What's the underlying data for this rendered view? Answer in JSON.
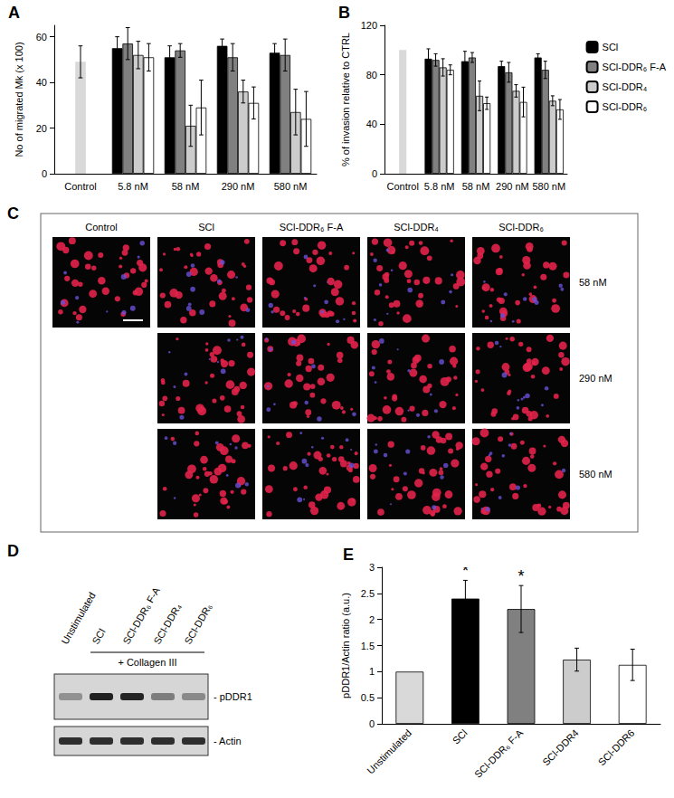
{
  "chart_data": [
    {
      "type": "bar",
      "title": "A",
      "ylabel": "No of migrated Mk (x 100)",
      "categories": [
        "Control",
        "5.8 nM",
        "58 nM",
        "290 nM",
        "580 nM"
      ],
      "ylim": [
        0,
        65
      ],
      "yticks": [
        0,
        20,
        40,
        60
      ],
      "grid": false,
      "legend": "none",
      "control": {
        "category": "Control",
        "value": 49,
        "error": 7,
        "color": "#d9d9d9"
      },
      "series": [
        {
          "name": "SCl",
          "color": "#000000",
          "values": [
            null,
            55,
            51,
            56,
            53
          ],
          "error": [
            null,
            5,
            5,
            3,
            4
          ]
        },
        {
          "name": "SCl-DDR₆ F-A",
          "color": "#808080",
          "values": [
            null,
            57,
            54,
            51,
            52
          ],
          "error": [
            null,
            7,
            3,
            6,
            7
          ]
        },
        {
          "name": "SCl-DDR₄",
          "color": "#cccccc",
          "values": [
            null,
            52,
            21,
            36,
            27
          ],
          "error": [
            null,
            6,
            9,
            5,
            10
          ]
        },
        {
          "name": "SCl-DDR₆",
          "color": "#ffffff",
          "values": [
            null,
            51,
            29,
            31,
            24
          ],
          "error": [
            null,
            6,
            12,
            7,
            12
          ]
        }
      ]
    },
    {
      "type": "bar",
      "title": "B",
      "ylabel": "% of invasion relative to CTRL",
      "categories": [
        "Control",
        "5.8 nM",
        "58 nM",
        "290 nM",
        "580 nM"
      ],
      "ylim": [
        0,
        120
      ],
      "yticks": [
        0,
        40,
        80,
        120
      ],
      "grid": false,
      "legend": "right",
      "control": {
        "category": "Control",
        "value": 100,
        "color": "#d9d9d9"
      },
      "series": [
        {
          "name": "SCl",
          "color": "#000000",
          "values": [
            null,
            93,
            91,
            87,
            94
          ],
          "error": [
            null,
            8,
            8,
            4,
            3
          ]
        },
        {
          "name": "SCl-DDR₆ F-A",
          "color": "#808080",
          "values": [
            null,
            92,
            94,
            82,
            84
          ],
          "error": [
            null,
            5,
            4,
            8,
            7
          ]
        },
        {
          "name": "SCl-DDR₄",
          "color": "#cccccc",
          "values": [
            null,
            86,
            63,
            67,
            59
          ],
          "error": [
            null,
            7,
            12,
            5,
            4
          ]
        },
        {
          "name": "SCl-DDR₆",
          "color": "#ffffff",
          "values": [
            null,
            84,
            57,
            58,
            52
          ],
          "error": [
            null,
            4,
            5,
            12,
            8
          ]
        }
      ]
    },
    {
      "type": "bar",
      "title": "E",
      "ylabel": "pDDR1/Actin ratio (a.u.)",
      "categories": [
        "Unstimulated",
        "SCl",
        "SCl-DDR₆ F-A",
        "SCl-DDR4",
        "SCl-DDR6"
      ],
      "values": [
        1,
        2.4,
        2.2,
        1.23,
        1.13
      ],
      "error": [
        null,
        0.35,
        0.45,
        0.22,
        0.3
      ],
      "significance": [
        null,
        "*",
        "*",
        null,
        null
      ],
      "colors": [
        "#d9d9d9",
        "#000000",
        "#808080",
        "#cccccc",
        "#ffffff"
      ],
      "ylim": [
        0,
        3
      ],
      "yticks": [
        0,
        0.5,
        1,
        1.5,
        2,
        2.5,
        3
      ],
      "grid": false
    }
  ],
  "panel_c": {
    "title": "C",
    "columns": [
      "Control",
      "SCl",
      "SCl-DDR₆ F-A",
      "SCl-DDR₄",
      "SCl-DDR₆"
    ],
    "rows": [
      "58 nM",
      "290 nM",
      "580 nM"
    ]
  },
  "panel_d": {
    "title": "D",
    "lanes": [
      "Unstimulated",
      "SCl",
      "SCl-DDR₆ F-A",
      "SCl-DDR₄",
      "SCl-DDR₆"
    ],
    "treatment": "+ Collagen III",
    "bands": [
      "- pDDR1",
      "- Actin"
    ]
  }
}
